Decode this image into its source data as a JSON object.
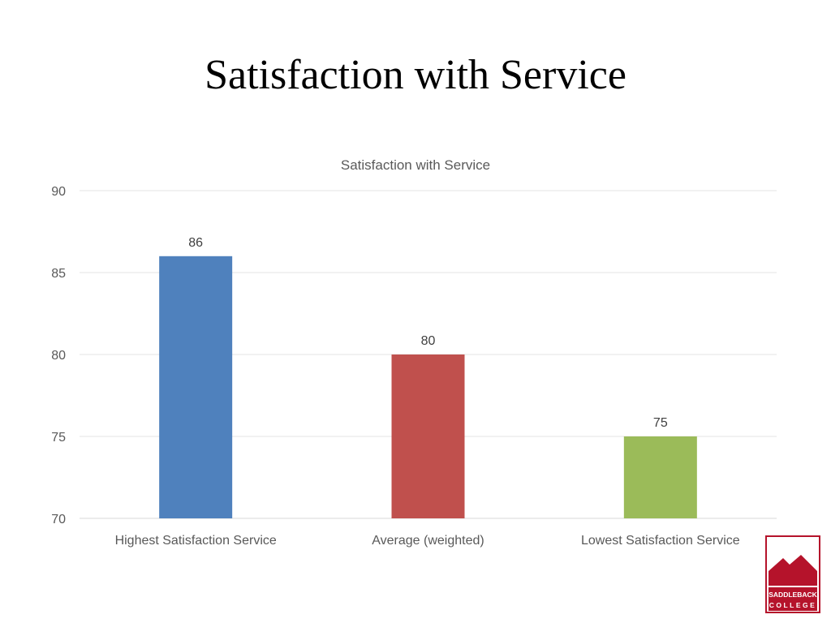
{
  "slide": {
    "title": "Satisfaction with Service"
  },
  "chart_data": {
    "type": "bar",
    "title": "Satisfaction with Service",
    "categories": [
      "Highest Satisfaction Service",
      "Average (weighted)",
      "Lowest Satisfaction Service"
    ],
    "values": [
      86,
      80,
      75
    ],
    "data_labels": [
      "86",
      "80",
      "75"
    ],
    "colors": [
      "#4F81BD",
      "#C0504D",
      "#9BBB59"
    ],
    "ylim": [
      70,
      90
    ],
    "yticks": [
      70,
      75,
      80,
      85,
      90
    ],
    "xlabel": "",
    "ylabel": "",
    "grid": true,
    "legend": "none"
  },
  "logo": {
    "text_line1": "SADDLEBACK",
    "text_line2": "COLLEGE",
    "color": "#B5132B"
  }
}
